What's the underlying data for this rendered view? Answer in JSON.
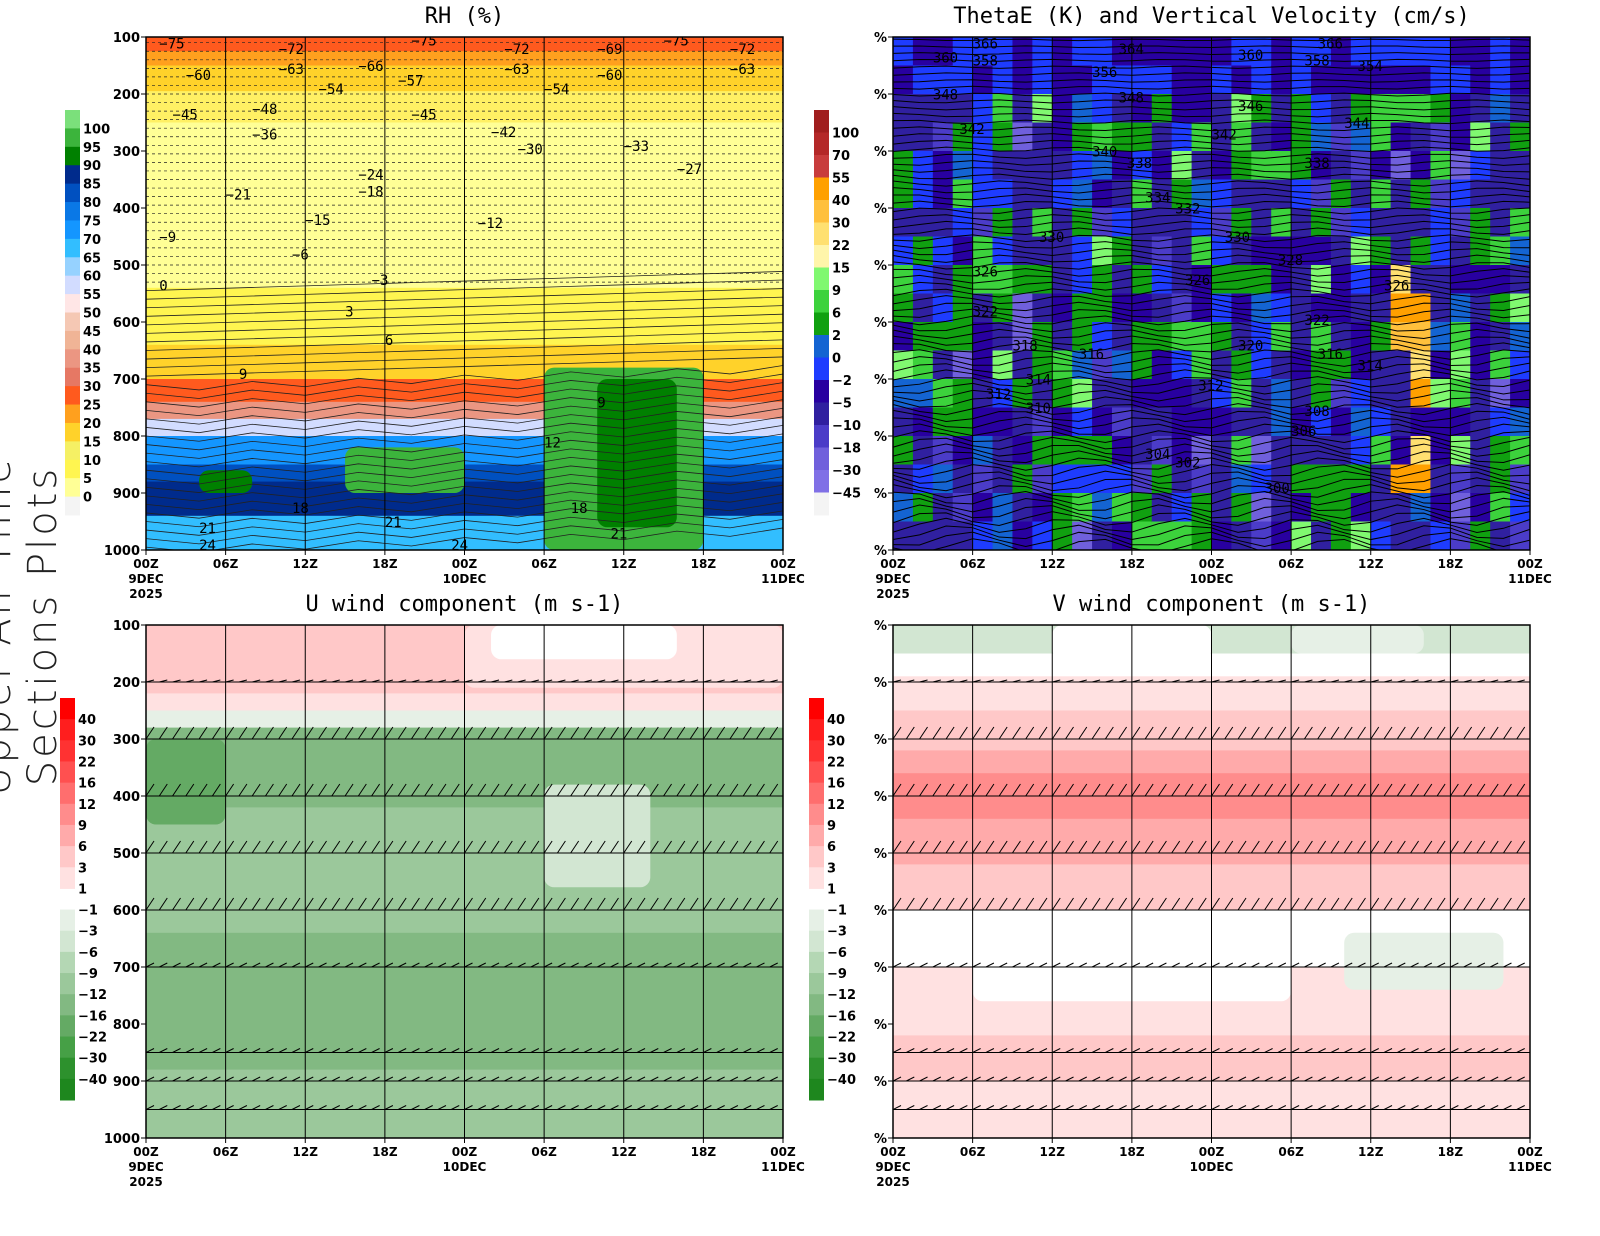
{
  "page_title": "Upper-Air Time Sections Plots",
  "x_ticks": [
    "00Z",
    "06Z",
    "12Z",
    "18Z",
    "00Z",
    "06Z",
    "12Z",
    "18Z",
    "00Z"
  ],
  "x_dates": [
    {
      "tick": 0,
      "lines": [
        "9DEC",
        "2025"
      ]
    },
    {
      "tick": 4,
      "lines": [
        "10DEC"
      ]
    },
    {
      "tick": 8,
      "lines": [
        "11DEC"
      ]
    }
  ],
  "chart_data": [
    {
      "type": "heatmap",
      "title": "RH (%)",
      "y_ticks": [
        "100",
        "200",
        "300",
        "400",
        "500",
        "600",
        "700",
        "800",
        "900",
        "1000"
      ],
      "ylim": [
        100,
        1000
      ],
      "xlim_hours": [
        0,
        48
      ],
      "colorbar": {
        "labels": [
          "100",
          "95",
          "90",
          "85",
          "80",
          "75",
          "70",
          "65",
          "60",
          "55",
          "50",
          "45",
          "40",
          "35",
          "30",
          "25",
          "20",
          "15",
          "10",
          "5",
          "0"
        ],
        "colors": [
          "#7be07b",
          "#3cb43c",
          "#008000",
          "#002b8c",
          "#0050c0",
          "#0a78e6",
          "#1496ff",
          "#32beff",
          "#96d2ff",
          "#d2dcff",
          "#ffe6e6",
          "#f5c8b4",
          "#f0b496",
          "#eb9682",
          "#e67864",
          "#ff5a1e",
          "#ffa01e",
          "#ffd22a",
          "#f5f064",
          "#fff550",
          "#ffff96",
          "#f4f4f4"
        ]
      },
      "bands": [
        [
          100,
          125,
          "#ff5a1e"
        ],
        [
          125,
          150,
          "#ffa01e"
        ],
        [
          150,
          195,
          "#ffd22a"
        ],
        [
          195,
          250,
          "#fff064"
        ],
        [
          250,
          540,
          "#ffff96"
        ],
        [
          540,
          640,
          "#fff550"
        ],
        [
          640,
          700,
          "#ffd22a"
        ],
        [
          700,
          740,
          "#ff5a1e"
        ],
        [
          740,
          770,
          "#eb9682"
        ],
        [
          770,
          800,
          "#d2dcff"
        ],
        [
          800,
          850,
          "#1496ff"
        ],
        [
          850,
          880,
          "#0050c0"
        ],
        [
          880,
          940,
          "#002b8c"
        ],
        [
          940,
          1000,
          "#32beff"
        ]
      ],
      "patches": [
        [
          30,
          42,
          680,
          1000,
          "#3cb43c"
        ],
        [
          34,
          40,
          700,
          960,
          "#008000"
        ],
        [
          15,
          24,
          820,
          900,
          "#3cb43c"
        ],
        [
          4,
          8,
          860,
          900,
          "#008000"
        ]
      ],
      "contour_labels": [
        {
          "h": 1,
          "p": 120,
          "v": "-75"
        },
        {
          "h": 10,
          "p": 130,
          "v": "-72"
        },
        {
          "h": 20,
          "p": 115,
          "v": "-75"
        },
        {
          "h": 27,
          "p": 130,
          "v": "-72"
        },
        {
          "h": 34,
          "p": 130,
          "v": "-69"
        },
        {
          "h": 39,
          "p": 115,
          "v": "-75"
        },
        {
          "h": 44,
          "p": 130,
          "v": "-72"
        },
        {
          "h": 3,
          "p": 175,
          "v": "-60"
        },
        {
          "h": 10,
          "p": 165,
          "v": "-63"
        },
        {
          "h": 16,
          "p": 160,
          "v": "-66"
        },
        {
          "h": 27,
          "p": 165,
          "v": "-63"
        },
        {
          "h": 34,
          "p": 175,
          "v": "-60"
        },
        {
          "h": 44,
          "p": 165,
          "v": "-63"
        },
        {
          "h": 13,
          "p": 200,
          "v": "-54"
        },
        {
          "h": 19,
          "p": 185,
          "v": "-57"
        },
        {
          "h": 30,
          "p": 200,
          "v": "-54"
        },
        {
          "h": 2,
          "p": 245,
          "v": "-45"
        },
        {
          "h": 8,
          "p": 235,
          "v": "-48"
        },
        {
          "h": 20,
          "p": 245,
          "v": "-45"
        },
        {
          "h": 26,
          "p": 275,
          "v": "-42"
        },
        {
          "h": 8,
          "p": 280,
          "v": "-36"
        },
        {
          "h": 28,
          "p": 305,
          "v": "-30"
        },
        {
          "h": 36,
          "p": 300,
          "v": "-33"
        },
        {
          "h": 40,
          "p": 340,
          "v": "-27"
        },
        {
          "h": 16,
          "p": 350,
          "v": "-24"
        },
        {
          "h": 6,
          "p": 385,
          "v": "-21"
        },
        {
          "h": 16,
          "p": 380,
          "v": "-18"
        },
        {
          "h": 12,
          "p": 430,
          "v": "-15"
        },
        {
          "h": 25,
          "p": 435,
          "v": "-12"
        },
        {
          "h": 1,
          "p": 460,
          "v": "-9"
        },
        {
          "h": 11,
          "p": 490,
          "v": "-6"
        },
        {
          "h": 17,
          "p": 535,
          "v": "-3"
        },
        {
          "h": 1,
          "p": 545,
          "v": "0"
        },
        {
          "h": 15,
          "p": 590,
          "v": "3"
        },
        {
          "h": 18,
          "p": 640,
          "v": "6"
        },
        {
          "h": 7,
          "p": 700,
          "v": "9"
        },
        {
          "h": 34,
          "p": 750,
          "v": "9"
        },
        {
          "h": 30,
          "p": 820,
          "v": "12"
        },
        {
          "h": 11,
          "p": 935,
          "v": "18"
        },
        {
          "h": 32,
          "p": 935,
          "v": "18"
        },
        {
          "h": 4,
          "p": 970,
          "v": "21"
        },
        {
          "h": 18,
          "p": 960,
          "v": "21"
        },
        {
          "h": 35,
          "p": 980,
          "v": "21"
        },
        {
          "h": 4,
          "p": 1000,
          "v": "24"
        },
        {
          "h": 23,
          "p": 1000,
          "v": "24"
        }
      ]
    },
    {
      "type": "heatmap",
      "title": "ThetaE (K) and Vertical Velocity (cm/s)",
      "y_ticks": [
        "%",
        "%",
        "%",
        "%",
        "%",
        "%",
        "%",
        "%",
        "%",
        "%"
      ],
      "ylim": [
        100,
        1000
      ],
      "xlim_hours": [
        0,
        48
      ],
      "colorbar": {
        "labels": [
          "100",
          "70",
          "55",
          "40",
          "30",
          "22",
          "15",
          "9",
          "6",
          "2",
          "0",
          "-2",
          "-5",
          "-10",
          "-18",
          "-30",
          "-45"
        ],
        "colors": [
          "#a01e1e",
          "#b42828",
          "#c83c3c",
          "#ffa000",
          "#ffc03c",
          "#ffe070",
          "#fff5aa",
          "#80f870",
          "#3cd23c",
          "#10a010",
          "#1464d2",
          "#1e3cff",
          "#2800a0",
          "#3020a0",
          "#4b3cc8",
          "#7060dc",
          "#8070e6",
          "#f4f4f4"
        ]
      },
      "contour_labels": [
        {
          "h": 6,
          "p": 120,
          "v": "366"
        },
        {
          "h": 17,
          "p": 130,
          "v": "364"
        },
        {
          "h": 32,
          "p": 120,
          "v": "366"
        },
        {
          "h": 3,
          "p": 145,
          "v": "360"
        },
        {
          "h": 6,
          "p": 150,
          "v": "358"
        },
        {
          "h": 15,
          "p": 170,
          "v": "356"
        },
        {
          "h": 26,
          "p": 140,
          "v": "360"
        },
        {
          "h": 31,
          "p": 150,
          "v": "358"
        },
        {
          "h": 35,
          "p": 160,
          "v": "354"
        },
        {
          "h": 3,
          "p": 210,
          "v": "348"
        },
        {
          "h": 17,
          "p": 215,
          "v": "348"
        },
        {
          "h": 26,
          "p": 230,
          "v": "346"
        },
        {
          "h": 5,
          "p": 270,
          "v": "342"
        },
        {
          "h": 24,
          "p": 280,
          "v": "342"
        },
        {
          "h": 34,
          "p": 260,
          "v": "344"
        },
        {
          "h": 15,
          "p": 310,
          "v": "340"
        },
        {
          "h": 14,
          "p": 330,
          "v": "338"
        },
        {
          "h": 31,
          "p": 330,
          "v": "338"
        },
        {
          "h": 19,
          "p": 390,
          "v": "334"
        },
        {
          "h": 19,
          "p": 410,
          "v": "332"
        },
        {
          "h": 11,
          "p": 460,
          "v": "330"
        },
        {
          "h": 25,
          "p": 460,
          "v": "330"
        },
        {
          "h": 29,
          "p": 500,
          "v": "328"
        },
        {
          "h": 6,
          "p": 520,
          "v": "326"
        },
        {
          "h": 22,
          "p": 535,
          "v": "326"
        },
        {
          "h": 37,
          "p": 545,
          "v": "326"
        },
        {
          "h": 6,
          "p": 590,
          "v": "322"
        },
        {
          "h": 31,
          "p": 605,
          "v": "322"
        },
        {
          "h": 9,
          "p": 650,
          "v": "318"
        },
        {
          "h": 26,
          "p": 650,
          "v": "320"
        },
        {
          "h": 14,
          "p": 665,
          "v": "316"
        },
        {
          "h": 32,
          "p": 665,
          "v": "316"
        },
        {
          "h": 10,
          "p": 710,
          "v": "314"
        },
        {
          "h": 35,
          "p": 685,
          "v": "314"
        },
        {
          "h": 7,
          "p": 735,
          "v": "312"
        },
        {
          "h": 23,
          "p": 720,
          "v": "312"
        },
        {
          "h": 10,
          "p": 760,
          "v": "310"
        },
        {
          "h": 31,
          "p": 765,
          "v": "308"
        },
        {
          "h": 30,
          "p": 800,
          "v": "306"
        },
        {
          "h": 19,
          "p": 840,
          "v": "304"
        },
        {
          "h": 19,
          "p": 855,
          "v": "302"
        },
        {
          "h": 28,
          "p": 900,
          "v": "300"
        }
      ]
    },
    {
      "type": "heatmap",
      "title": "U wind component (m s-1)",
      "y_ticks": [
        "100",
        "200",
        "300",
        "400",
        "500",
        "600",
        "700",
        "800",
        "900",
        "1000"
      ],
      "ylim": [
        100,
        1000
      ],
      "xlim_hours": [
        0,
        48
      ],
      "colorbar": {
        "labels": [
          "40",
          "30",
          "22",
          "16",
          "12",
          "9",
          "6",
          "3",
          "1",
          "-1",
          "-3",
          "-6",
          "-9",
          "-12",
          "-16",
          "-22",
          "-30",
          "-40"
        ],
        "colors": [
          "#ff0000",
          "#ff1e1e",
          "#ff3232",
          "#ff5050",
          "#ff6e6e",
          "#ff8c8c",
          "#ffaaaa",
          "#ffc8c8",
          "#ffe1e1",
          "#ffffff",
          "#e6f0e6",
          "#d2e6d2",
          "#b4d7b4",
          "#9bc89b",
          "#82b982",
          "#64aa64",
          "#46a046",
          "#2d912d",
          "#1e871e"
        ]
      },
      "bands": [
        [
          100,
          220,
          "#ffc8c8"
        ],
        [
          220,
          250,
          "#ffe1e1"
        ],
        [
          250,
          280,
          "#e6f0e6"
        ],
        [
          280,
          420,
          "#82b982"
        ],
        [
          420,
          640,
          "#9bc89b"
        ],
        [
          640,
          880,
          "#82b982"
        ],
        [
          880,
          1000,
          "#9bc89b"
        ]
      ],
      "patches": [
        [
          24,
          48,
          100,
          210,
          "#ffe1e1"
        ],
        [
          26,
          40,
          100,
          160,
          "#ffffff"
        ],
        [
          0,
          6,
          300,
          450,
          "#64aa64"
        ],
        [
          30,
          38,
          380,
          560,
          "#d2e6d2"
        ]
      ]
    },
    {
      "type": "heatmap",
      "title": "V wind component (m s-1)",
      "y_ticks": [
        "%",
        "%",
        "%",
        "%",
        "%",
        "%",
        "%",
        "%",
        "%",
        "%"
      ],
      "ylim": [
        100,
        1000
      ],
      "xlim_hours": [
        0,
        48
      ],
      "colorbar": {
        "labels": [
          "40",
          "30",
          "22",
          "16",
          "12",
          "9",
          "6",
          "3",
          "1",
          "-1",
          "-3",
          "-6",
          "-9",
          "-12",
          "-16",
          "-22",
          "-30",
          "-40"
        ],
        "colors": [
          "#ff0000",
          "#ff1e1e",
          "#ff3232",
          "#ff5050",
          "#ff6e6e",
          "#ff8c8c",
          "#ffaaaa",
          "#ffc8c8",
          "#ffe1e1",
          "#ffffff",
          "#e6f0e6",
          "#d2e6d2",
          "#b4d7b4",
          "#9bc89b",
          "#82b982",
          "#64aa64",
          "#46a046",
          "#2d912d",
          "#1e871e"
        ]
      },
      "bands": [
        [
          100,
          150,
          "#d2e6d2"
        ],
        [
          150,
          190,
          "#ffffff"
        ],
        [
          190,
          250,
          "#ffe1e1"
        ],
        [
          250,
          320,
          "#ffc8c8"
        ],
        [
          320,
          360,
          "#ffaaaa"
        ],
        [
          360,
          440,
          "#ff8c8c"
        ],
        [
          440,
          520,
          "#ffaaaa"
        ],
        [
          520,
          600,
          "#ffc8c8"
        ],
        [
          600,
          700,
          "#ffffff"
        ],
        [
          700,
          820,
          "#ffe1e1"
        ],
        [
          820,
          900,
          "#ffc8c8"
        ],
        [
          900,
          1000,
          "#ffe1e1"
        ]
      ],
      "patches": [
        [
          12,
          24,
          100,
          160,
          "#ffffff"
        ],
        [
          30,
          40,
          100,
          150,
          "#e6f0e6"
        ],
        [
          6,
          30,
          620,
          760,
          "#ffffff"
        ],
        [
          34,
          46,
          640,
          740,
          "#e6f0e6"
        ]
      ]
    }
  ]
}
